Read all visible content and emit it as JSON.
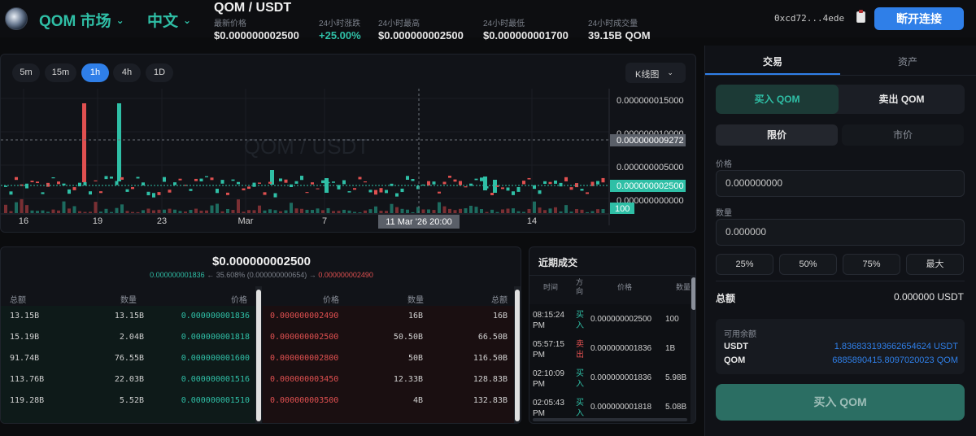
{
  "header": {
    "market_label": "QOM 市场",
    "language_label": "中文",
    "pair": "QOM / USDT",
    "stats": [
      {
        "label": "最新价格",
        "value": "$0.000000002500",
        "tone": "neutral"
      },
      {
        "label": "24小时涨跌",
        "value": "+25.00%",
        "tone": "up"
      },
      {
        "label": "24小时最高",
        "value": "$0.000000002500",
        "tone": "neutral"
      },
      {
        "label": "24小时最低",
        "value": "$0.000000001700",
        "tone": "neutral"
      },
      {
        "label": "24小时成交量",
        "value": "39.15B QOM",
        "tone": "neutral"
      }
    ],
    "wallet_address": "0xcd72...4ede",
    "disconnect_label": "断开连接"
  },
  "chart": {
    "timeframes": [
      "5m",
      "15m",
      "1h",
      "4h",
      "1D"
    ],
    "active_timeframe": "1h",
    "chart_type_label": "K线图",
    "watermark": "QOM / USDT",
    "price_ticks": [
      "0.000000015000",
      "0.000000010000",
      "0.000000005000",
      "0.000000000000"
    ],
    "crosshair_price": "0.000000009272",
    "last_price_tag": "0.000000002500",
    "volume_tag": "100",
    "date_ticks": [
      "16",
      "19",
      "23",
      "Mar",
      "7",
      "11",
      "14"
    ],
    "crosshair_time": "11 Mar '26   20:00",
    "colors": {
      "up": "#2fbfa6",
      "down": "#e05050"
    }
  },
  "orderbook": {
    "mid_price": "$0.000000002500",
    "spread_bid": "0.000000001836",
    "spread_text": "← 35.608% (0.000000000654) →",
    "spread_ask": "0.000000002490",
    "bid_headers": [
      "总额",
      "数量",
      "价格"
    ],
    "ask_headers": [
      "价格",
      "数量",
      "总额"
    ],
    "bids": [
      {
        "total": "13.15B",
        "qty": "13.15B",
        "price": "0.000000001836"
      },
      {
        "total": "15.19B",
        "qty": "2.04B",
        "price": "0.000000001818"
      },
      {
        "total": "91.74B",
        "qty": "76.55B",
        "price": "0.000000001600"
      },
      {
        "total": "113.76B",
        "qty": "22.03B",
        "price": "0.000000001516"
      },
      {
        "total": "119.28B",
        "qty": "5.52B",
        "price": "0.000000001510"
      }
    ],
    "asks": [
      {
        "price": "0.000000002490",
        "qty": "16B",
        "total": "16B"
      },
      {
        "price": "0.000000002500",
        "qty": "50.50B",
        "total": "66.50B"
      },
      {
        "price": "0.000000002800",
        "qty": "50B",
        "total": "116.50B"
      },
      {
        "price": "0.000000003450",
        "qty": "12.33B",
        "total": "128.83B"
      },
      {
        "price": "0.000000003500",
        "qty": "4B",
        "total": "132.83B"
      }
    ]
  },
  "recent_trades": {
    "title": "近期成交",
    "headers": [
      "时间",
      "方向",
      "价格",
      "数量"
    ],
    "rows": [
      {
        "time": "08:15:24 PM",
        "side": "买入",
        "side_type": "buy",
        "price": "0.000000002500",
        "qty": "100"
      },
      {
        "time": "05:57:15 PM",
        "side": "卖出",
        "side_type": "sell",
        "price": "0.000000001836",
        "qty": "1B"
      },
      {
        "time": "02:10:09 PM",
        "side": "买入",
        "side_type": "buy",
        "price": "0.000000001836",
        "qty": "5.98B"
      },
      {
        "time": "02:05:43 PM",
        "side": "买入",
        "side_type": "buy",
        "price": "0.000000001818",
        "qty": "5.08B"
      }
    ]
  },
  "trade_panel": {
    "tabs": [
      "交易",
      "资产"
    ],
    "buy_label": "买入 QOM",
    "sell_label": "卖出 QOM",
    "limit_label": "限价",
    "market_label": "市价",
    "price_label": "价格",
    "price_placeholder": "0.000000000",
    "amount_label": "数量",
    "amount_placeholder": "0.000000",
    "percent_buttons": [
      "25%",
      "50%",
      "75%",
      "最大"
    ],
    "total_label": "总额",
    "total_value": "0.000000 USDT",
    "balance_title": "可用余额",
    "balances": [
      {
        "asset": "USDT",
        "amount": "1.836833193662654624 USDT"
      },
      {
        "asset": "QOM",
        "amount": "6885890415.8097020023 QOM"
      }
    ],
    "submit_label": "买入 QOM"
  }
}
